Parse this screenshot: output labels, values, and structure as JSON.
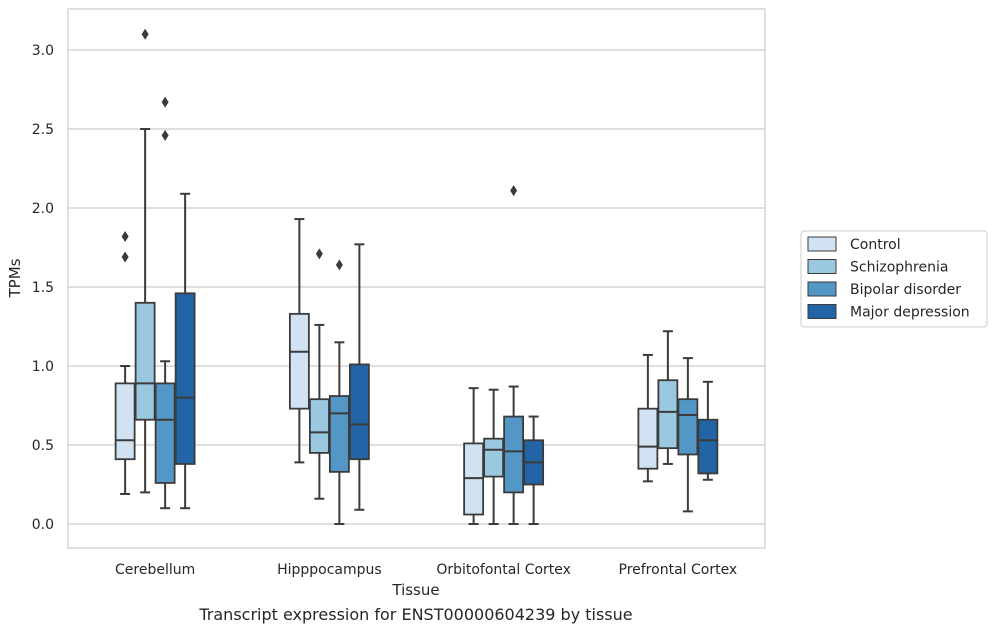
{
  "caption": "Transcript expression for ENST00000604239 by tissue",
  "chart_data": {
    "type": "box",
    "xlabel": "Tissue",
    "ylabel": "TPMs",
    "ylim": [
      -0.15,
      3.25
    ],
    "yticks": [
      "0.0",
      "0.5",
      "1.0",
      "1.5",
      "2.0",
      "2.5",
      "3.0"
    ],
    "grid": true,
    "legend_position": "right",
    "categories": [
      "Cerebellum",
      "Hipppocampus",
      "Orbitofontal Cortex",
      "Prefrontal Cortex"
    ],
    "series": [
      {
        "name": "Control",
        "color": "#d1e2f2",
        "boxes": [
          {
            "whislo": 0.19,
            "q1": 0.41,
            "med": 0.53,
            "q3": 0.89,
            "whishi": 1.0,
            "fliers": [
              1.69,
              1.82
            ]
          },
          {
            "whislo": 0.39,
            "q1": 0.73,
            "med": 1.09,
            "q3": 1.33,
            "whishi": 1.93,
            "fliers": []
          },
          {
            "whislo": 0.0,
            "q1": 0.06,
            "med": 0.29,
            "q3": 0.51,
            "whishi": 0.86,
            "fliers": []
          },
          {
            "whislo": 0.27,
            "q1": 0.35,
            "med": 0.49,
            "q3": 0.73,
            "whishi": 1.07,
            "fliers": []
          }
        ]
      },
      {
        "name": "Schizophrenia",
        "color": "#9ac8e0",
        "boxes": [
          {
            "whislo": 0.2,
            "q1": 0.66,
            "med": 0.89,
            "q3": 1.4,
            "whishi": 2.5,
            "fliers": [
              3.1
            ]
          },
          {
            "whislo": 0.16,
            "q1": 0.45,
            "med": 0.58,
            "q3": 0.79,
            "whishi": 1.26,
            "fliers": [
              1.71
            ]
          },
          {
            "whislo": 0.0,
            "q1": 0.3,
            "med": 0.47,
            "q3": 0.54,
            "whishi": 0.85,
            "fliers": []
          },
          {
            "whislo": 0.38,
            "q1": 0.48,
            "med": 0.71,
            "q3": 0.91,
            "whishi": 1.22,
            "fliers": []
          }
        ]
      },
      {
        "name": "Bipolar disorder",
        "color": "#5297c6",
        "boxes": [
          {
            "whislo": 0.1,
            "q1": 0.26,
            "med": 0.66,
            "q3": 0.89,
            "whishi": 1.03,
            "fliers": [
              2.46,
              2.67
            ]
          },
          {
            "whislo": 0.0,
            "q1": 0.33,
            "med": 0.7,
            "q3": 0.81,
            "whishi": 1.15,
            "fliers": [
              1.64
            ]
          },
          {
            "whislo": 0.0,
            "q1": 0.2,
            "med": 0.46,
            "q3": 0.68,
            "whishi": 0.87,
            "fliers": [
              2.11
            ]
          },
          {
            "whislo": 0.08,
            "q1": 0.44,
            "med": 0.69,
            "q3": 0.79,
            "whishi": 1.05,
            "fliers": []
          }
        ]
      },
      {
        "name": "Major depression",
        "color": "#2264a6",
        "boxes": [
          {
            "whislo": 0.1,
            "q1": 0.38,
            "med": 0.8,
            "q3": 1.46,
            "whishi": 2.09,
            "fliers": []
          },
          {
            "whislo": 0.09,
            "q1": 0.41,
            "med": 0.63,
            "q3": 1.01,
            "whishi": 1.77,
            "fliers": []
          },
          {
            "whislo": 0.0,
            "q1": 0.25,
            "med": 0.39,
            "q3": 0.53,
            "whishi": 0.68,
            "fliers": []
          },
          {
            "whislo": 0.28,
            "q1": 0.32,
            "med": 0.53,
            "q3": 0.66,
            "whishi": 0.9,
            "fliers": []
          }
        ]
      }
    ]
  }
}
